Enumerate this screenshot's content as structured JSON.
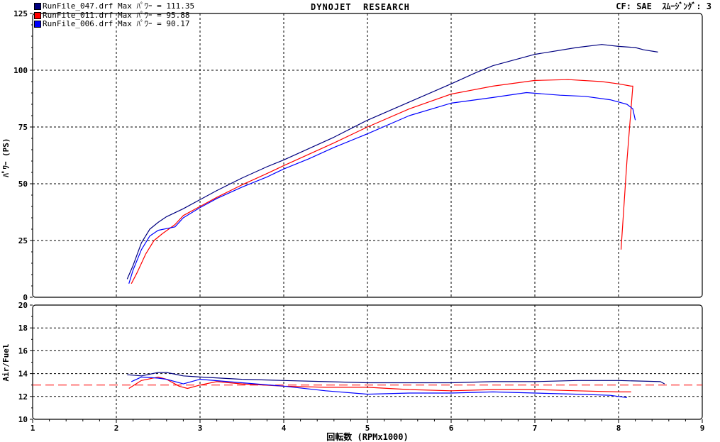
{
  "header": {
    "title": "DYNOJET  RESEARCH",
    "cf": "CF: SAE  ｽﾑｰｼﾞﾝｸﾞ: 3"
  },
  "legend": [
    {
      "file": "RunFile_047.drf",
      "text": "Max ﾊﾟﾜｰ = 111.35",
      "color": "#000080"
    },
    {
      "file": "RunFile_011.drf",
      "text": "Max ﾊﾟﾜｰ = 95.88",
      "color": "#ff0000"
    },
    {
      "file": "RunFile_006.drf",
      "text": "Max ﾊﾟﾜｰ = 90.17",
      "color": "#0000ff"
    }
  ],
  "chart_data": [
    {
      "type": "line",
      "ylabel": "ﾊﾟﾜｰ (PS)",
      "xlim": [
        1,
        9
      ],
      "ylim": [
        0,
        125
      ],
      "yticks": [
        0,
        25,
        50,
        75,
        100,
        125
      ],
      "grid": true,
      "series": [
        {
          "name": "RunFile_047.drf",
          "color": "#000080",
          "points": [
            [
              2.13,
              8
            ],
            [
              2.2,
              14
            ],
            [
              2.3,
              24
            ],
            [
              2.4,
              30
            ],
            [
              2.5,
              33
            ],
            [
              2.6,
              35.5
            ],
            [
              2.8,
              39
            ],
            [
              3,
              43
            ],
            [
              3.2,
              47
            ],
            [
              3.5,
              52.5
            ],
            [
              3.8,
              57.5
            ],
            [
              4,
              60.5
            ],
            [
              4.3,
              65.5
            ],
            [
              4.6,
              70.5
            ],
            [
              5,
              78
            ],
            [
              5.5,
              86
            ],
            [
              6,
              94
            ],
            [
              6.3,
              99
            ],
            [
              6.5,
              102
            ],
            [
              7,
              107
            ],
            [
              7.5,
              110
            ],
            [
              7.8,
              111.35
            ],
            [
              8,
              110.5
            ],
            [
              8.2,
              110
            ],
            [
              8.3,
              109
            ],
            [
              8.47,
              108
            ]
          ]
        },
        {
          "name": "RunFile_011.drf",
          "color": "#ff0000",
          "points": [
            [
              2.18,
              6
            ],
            [
              2.25,
              11
            ],
            [
              2.35,
              19
            ],
            [
              2.45,
              25
            ],
            [
              2.55,
              28
            ],
            [
              2.7,
              32
            ],
            [
              2.8,
              36
            ],
            [
              3,
              40
            ],
            [
              3.2,
              44
            ],
            [
              3.5,
              49.5
            ],
            [
              3.8,
              54.5
            ],
            [
              4,
              58
            ],
            [
              4.3,
              63
            ],
            [
              4.6,
              68
            ],
            [
              5,
              75
            ],
            [
              5.5,
              83
            ],
            [
              6,
              89.5
            ],
            [
              6.5,
              93
            ],
            [
              7,
              95.5
            ],
            [
              7.4,
              95.88
            ],
            [
              7.8,
              95
            ],
            [
              8,
              94
            ],
            [
              8.15,
              93
            ],
            [
              8.17,
              93
            ],
            [
              8.1,
              60
            ],
            [
              8.03,
              21
            ]
          ]
        },
        {
          "name": "RunFile_006.drf",
          "color": "#0000ff",
          "points": [
            [
              2.15,
              6
            ],
            [
              2.2,
              12
            ],
            [
              2.3,
              21
            ],
            [
              2.4,
              27
            ],
            [
              2.5,
              29.5
            ],
            [
              2.7,
              31
            ],
            [
              2.8,
              35
            ],
            [
              3,
              39.5
            ],
            [
              3.2,
              43.5
            ],
            [
              3.5,
              48.5
            ],
            [
              3.8,
              53
            ],
            [
              4,
              56.5
            ],
            [
              4.3,
              61
            ],
            [
              4.6,
              66
            ],
            [
              5,
              72
            ],
            [
              5.5,
              80
            ],
            [
              6,
              85.5
            ],
            [
              6.5,
              88
            ],
            [
              6.9,
              90.17
            ],
            [
              7.3,
              89
            ],
            [
              7.6,
              88.5
            ],
            [
              7.9,
              87
            ],
            [
              8.1,
              85
            ],
            [
              8.17,
              83
            ],
            [
              8.2,
              78
            ]
          ]
        }
      ]
    },
    {
      "type": "line",
      "ylabel": "Air/Fuel",
      "xlabel": "回転数 (RPMx1000)",
      "xlim": [
        1,
        9
      ],
      "xticks": [
        1,
        2,
        3,
        4,
        5,
        6,
        7,
        8,
        9
      ],
      "ylim": [
        10,
        20
      ],
      "yticks": [
        10,
        12,
        14,
        16,
        18,
        20
      ],
      "grid": true,
      "reference_line": {
        "value": 13,
        "color": "#ff0000",
        "style": "dashed"
      },
      "series": [
        {
          "name": "RunFile_047.drf",
          "color": "#000080",
          "points": [
            [
              2.13,
              13.9
            ],
            [
              2.3,
              13.8
            ],
            [
              2.5,
              14.1
            ],
            [
              2.6,
              14.1
            ],
            [
              2.8,
              13.8
            ],
            [
              3,
              13.7
            ],
            [
              3.5,
              13.5
            ],
            [
              4,
              13.4
            ],
            [
              4.5,
              13.3
            ],
            [
              5,
              13.2
            ],
            [
              5.5,
              13.2
            ],
            [
              6,
              13.2
            ],
            [
              6.5,
              13.3
            ],
            [
              7,
              13.3
            ],
            [
              7.5,
              13.4
            ],
            [
              8,
              13.4
            ],
            [
              8.5,
              13.3
            ],
            [
              8.55,
              13.1
            ]
          ]
        },
        {
          "name": "RunFile_011.drf",
          "color": "#ff0000",
          "points": [
            [
              2.15,
              12.7
            ],
            [
              2.3,
              13.4
            ],
            [
              2.5,
              13.7
            ],
            [
              2.6,
              13.5
            ],
            [
              2.75,
              12.9
            ],
            [
              2.85,
              12.7
            ],
            [
              3,
              13.0
            ],
            [
              3.2,
              13.3
            ],
            [
              3.5,
              13.1
            ],
            [
              4,
              12.9
            ],
            [
              4.5,
              12.8
            ],
            [
              5,
              12.8
            ],
            [
              5.5,
              12.6
            ],
            [
              6,
              12.5
            ],
            [
              6.5,
              12.6
            ],
            [
              7,
              12.6
            ],
            [
              7.5,
              12.5
            ],
            [
              8,
              12.4
            ],
            [
              8.15,
              12.4
            ]
          ]
        },
        {
          "name": "RunFile_006.drf",
          "color": "#0000ff",
          "points": [
            [
              2.18,
              13.3
            ],
            [
              2.3,
              13.7
            ],
            [
              2.5,
              13.6
            ],
            [
              2.6,
              13.5
            ],
            [
              2.8,
              13.1
            ],
            [
              3,
              13.5
            ],
            [
              3.5,
              13.2
            ],
            [
              4,
              12.9
            ],
            [
              4.5,
              12.5
            ],
            [
              5,
              12.2
            ],
            [
              5.5,
              12.3
            ],
            [
              6,
              12.3
            ],
            [
              6.5,
              12.4
            ],
            [
              7,
              12.3
            ],
            [
              7.5,
              12.2
            ],
            [
              7.9,
              12.1
            ],
            [
              8,
              12.0
            ],
            [
              8.1,
              11.9
            ]
          ]
        }
      ]
    }
  ]
}
